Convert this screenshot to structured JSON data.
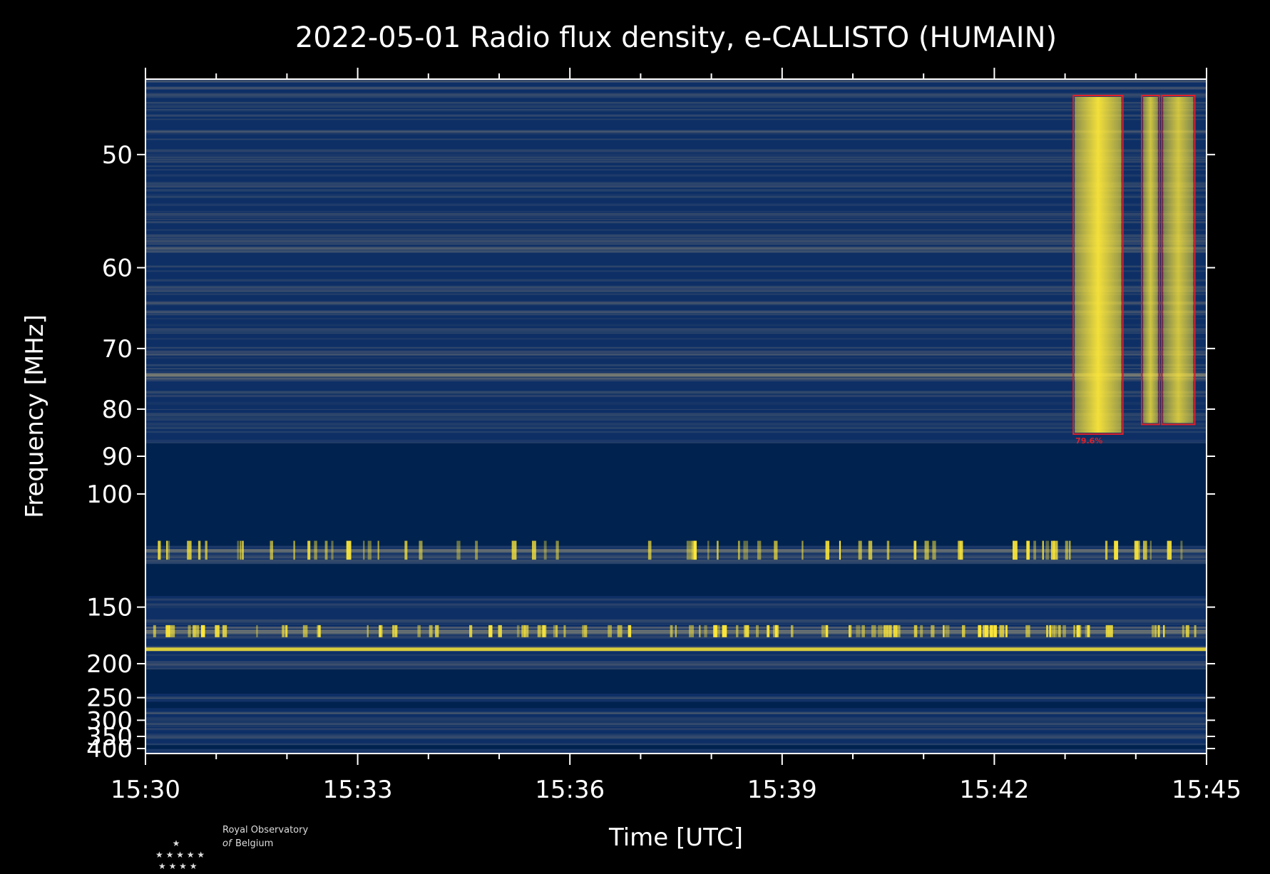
{
  "chart_data": {
    "type": "heatmap",
    "title": "2022-05-01 Radio flux density, e-CALLISTO (HUMAIN)",
    "xlabel": "Time [UTC]",
    "ylabel": "Frequency [MHz]",
    "x_ticks": [
      "15:30",
      "15:33",
      "15:36",
      "15:39",
      "15:42",
      "15:45"
    ],
    "y_ticks": [
      50,
      60,
      70,
      80,
      90,
      100,
      150,
      200,
      250,
      300,
      350,
      400
    ],
    "xlim": [
      "15:30",
      "15:45"
    ],
    "ylim": [
      45,
      425
    ],
    "y_scale": "reciprocal",
    "colormap": "cividis",
    "colors": {
      "background": "#000000",
      "low": "#00224e",
      "mid": "#7c7b78",
      "high": "#fee838",
      "box": "#e0202a"
    },
    "detections": [
      {
        "t_start": "15:43:07",
        "t_end": "15:43:49",
        "f_low": 85,
        "f_high": 46,
        "label": "79.6%"
      },
      {
        "t_start": "15:44:05",
        "t_end": "15:44:20",
        "f_low": 83,
        "f_high": 46,
        "label": ""
      },
      {
        "t_start": "15:44:22",
        "t_end": "15:44:50",
        "f_low": 83,
        "f_high": 46,
        "label": ""
      }
    ],
    "strong_bands_mhz": [
      74,
      120,
      168,
      184
    ],
    "blank_bands_mhz": [
      [
        87,
        118
      ],
      [
        126,
        143
      ],
      [
        207,
        243
      ],
      [
        258,
        271
      ],
      [
        385,
        402
      ]
    ]
  },
  "logo": {
    "line1": "Royal Observatory",
    "line2_italic": "of",
    "line2": "Belgium",
    "icon": "star-cluster-icon"
  }
}
